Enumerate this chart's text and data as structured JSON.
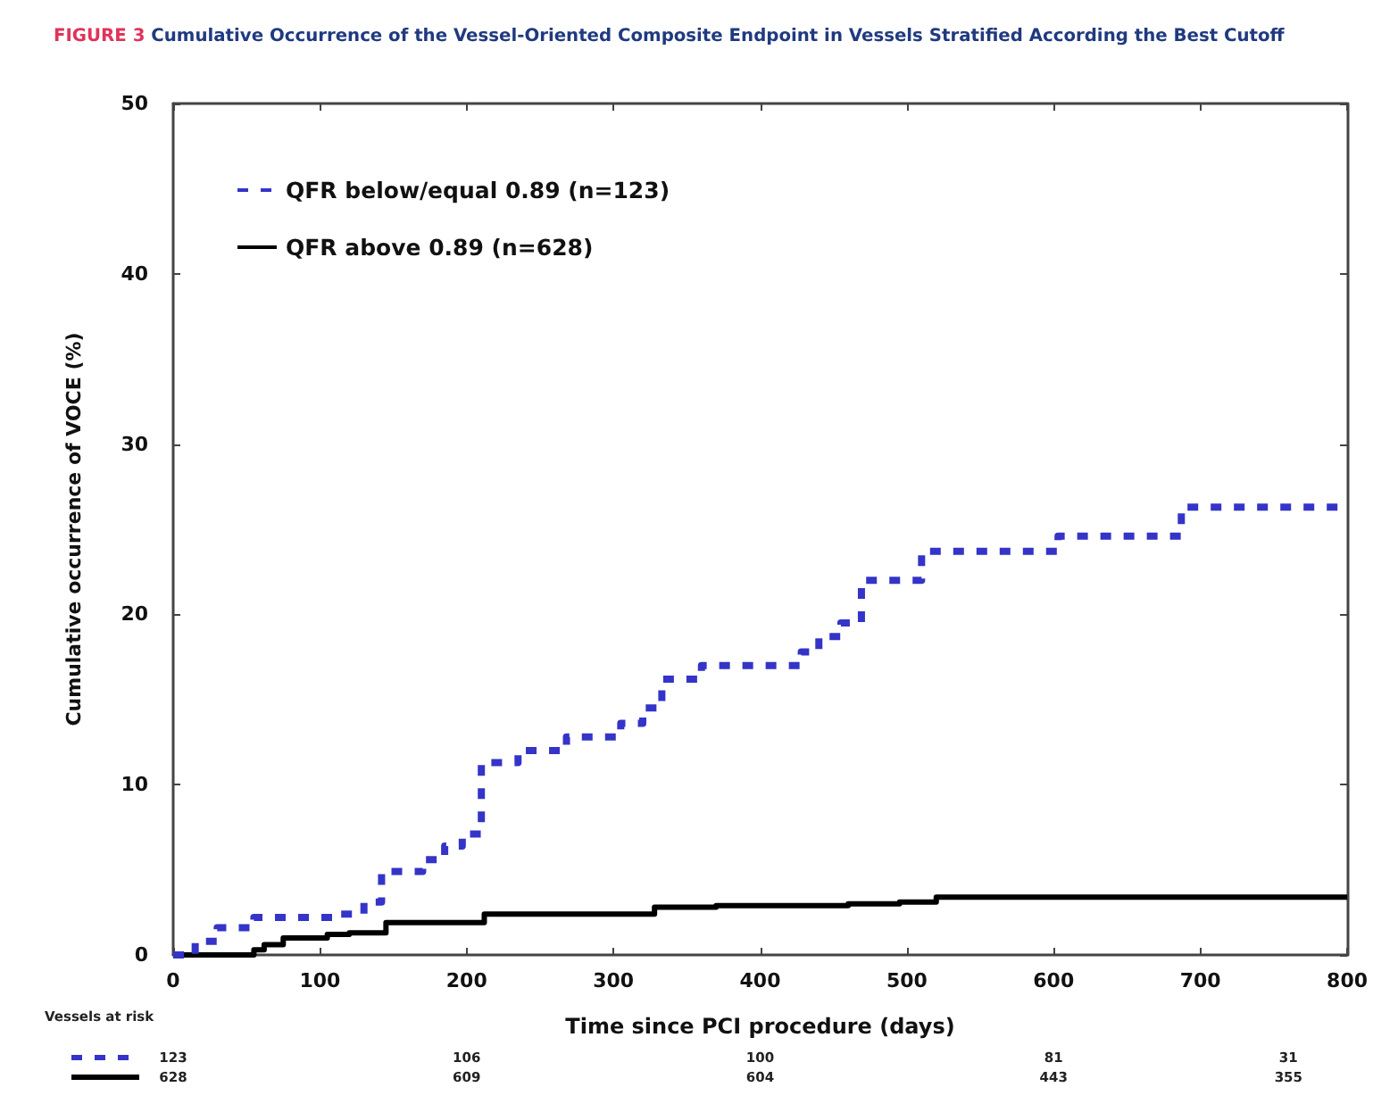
{
  "chart_data": {
    "type": "step",
    "title": "FIGURE 3 Cumulative Occurrence of the Vessel-Oriented Composite Endpoint in Vessels Stratified According the Best Cutoff",
    "xlabel": "Time since PCI procedure (days)",
    "ylabel": "Cumulative occurrence of VOCE (%)",
    "xlim": [
      0,
      800
    ],
    "xticks": [
      0,
      100,
      200,
      300,
      400,
      500,
      600,
      700,
      800
    ],
    "ylim": [
      0,
      50
    ],
    "yticks": [
      0,
      10,
      20,
      30,
      40,
      50
    ],
    "legend": "top left",
    "marker": "none",
    "series": [
      {
        "name": "QFR below/equal 0.89 (n=123)",
        "color": "#3434c8",
        "line_style": "dashed",
        "x": [
          0,
          15,
          30,
          55,
          112,
          130,
          142,
          170,
          185,
          197,
          210,
          235,
          268,
          305,
          320,
          333,
          360,
          428,
          440,
          455,
          469,
          510,
          603,
          687,
          800
        ],
        "values": [
          0,
          0.8,
          1.6,
          2.2,
          2.4,
          3.1,
          4.9,
          5.6,
          6.4,
          7.1,
          11.3,
          12.0,
          12.8,
          13.6,
          14.5,
          16.2,
          17.0,
          17.8,
          18.7,
          19.5,
          22.0,
          23.7,
          24.6,
          26.3,
          26.3
        ]
      },
      {
        "name": "QFR above 0.89 (n=628)",
        "color": "#000000",
        "line_style": "solid",
        "x": [
          0,
          55,
          62,
          75,
          105,
          120,
          145,
          212,
          328,
          370,
          460,
          495,
          520,
          800
        ],
        "values": [
          0,
          0.3,
          0.6,
          1.0,
          1.2,
          1.3,
          1.9,
          2.4,
          2.8,
          2.9,
          3.0,
          3.1,
          3.4,
          3.4
        ]
      }
    ],
    "annotations": [
      "Vessels at risk",
      "123",
      "106",
      "100",
      "81",
      "31",
      "628",
      "609",
      "604",
      "443",
      "355"
    ]
  }
}
